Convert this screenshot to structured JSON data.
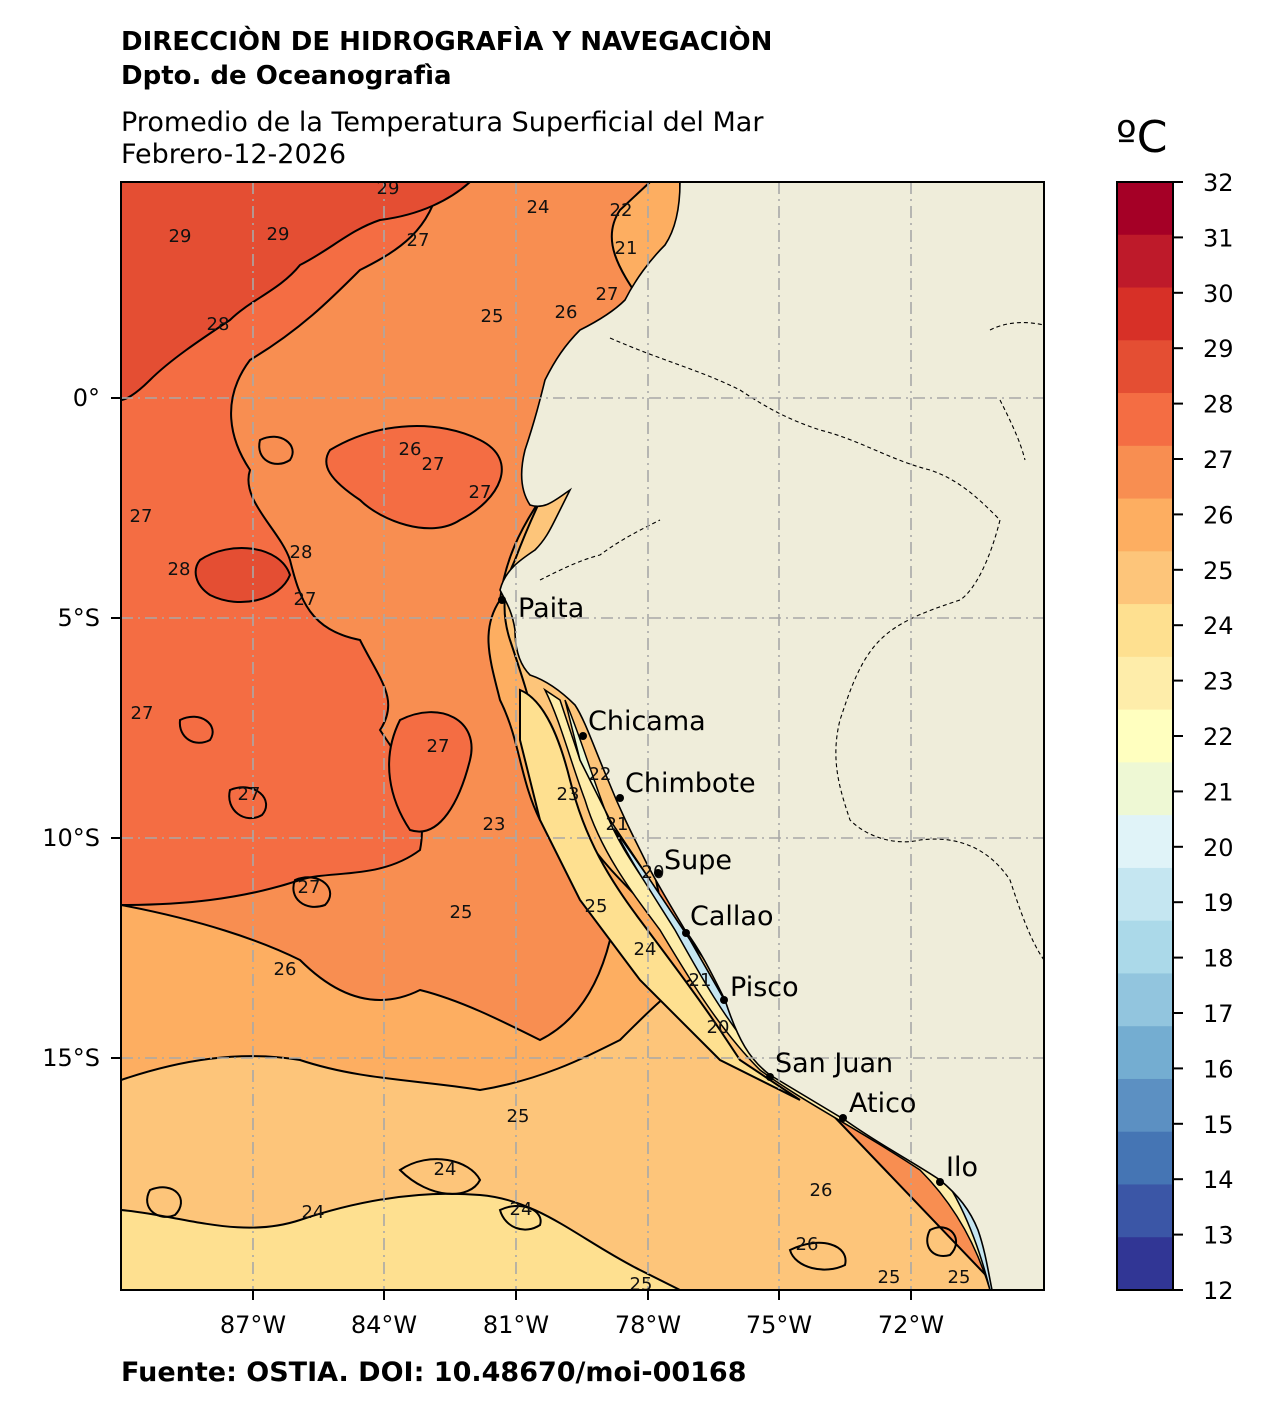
{
  "header": {
    "agency": "DIRECCIÒN DE HIDROGRAFÌA Y NAVEGACIÒN",
    "department": "Dpto. de Oceanografìa",
    "product": "Promedio de la Temperatura Superficial del Mar",
    "date": "Febrero-12-2026"
  },
  "footer": "Fuente: OSTIA. DOI: 10.48670/moi-00168",
  "colorbar": {
    "unit": "ºC",
    "ticks": [
      "32",
      "31",
      "30",
      "29",
      "28",
      "27",
      "26",
      "25",
      "24",
      "23",
      "22",
      "21",
      "20",
      "19",
      "18",
      "17",
      "16",
      "15",
      "14",
      "13",
      "12"
    ],
    "colors": [
      "#a50026",
      "#be1a2a",
      "#d73027",
      "#e44e33",
      "#f46d43",
      "#f88e51",
      "#fdae61",
      "#fdc57a",
      "#fee090",
      "#feedaa",
      "#ffffbf",
      "#eef8d4",
      "#e0f3f8",
      "#c5e6f1",
      "#abd9e9",
      "#92c5de",
      "#74add1",
      "#5c90c2",
      "#4575b4",
      "#3b56a6",
      "#313695"
    ]
  },
  "map": {
    "lon_labels": [
      "87°W",
      "84°W",
      "81°W",
      "78°W",
      "75°W",
      "72°W"
    ],
    "lat_labels": [
      "0°",
      "5°S",
      "10°S",
      "15°S"
    ],
    "land_color": "#efedda",
    "ports": [
      {
        "name": "Paita"
      },
      {
        "name": "Chicama"
      },
      {
        "name": "Chimbote"
      },
      {
        "name": "Supe"
      },
      {
        "name": "Callao"
      },
      {
        "name": "Pisco"
      },
      {
        "name": "San Juan"
      },
      {
        "name": "Atico"
      },
      {
        "name": "Ilo"
      }
    ],
    "contour_labels": [
      "29",
      "29",
      "29",
      "28",
      "27",
      "24",
      "22",
      "21",
      "25",
      "26",
      "27",
      "26",
      "27",
      "27",
      "27",
      "28",
      "28",
      "27",
      "27",
      "27",
      "27",
      "23",
      "22",
      "23",
      "21",
      "20",
      "25",
      "24",
      "21",
      "20",
      "27",
      "26",
      "25",
      "25",
      "24",
      "24",
      "24",
      "25",
      "26",
      "26",
      "25",
      "25"
    ]
  }
}
